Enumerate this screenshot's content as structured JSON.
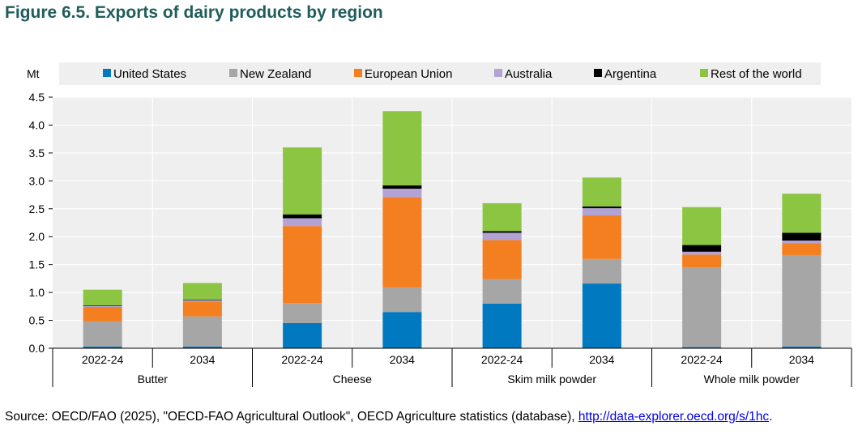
{
  "figure_title": "Figure 6.5. Exports of dairy products by region",
  "source": {
    "text": "Source: OECD/FAO (2025), \"OECD-FAO Agricultural Outlook\", OECD Agriculture statistics (database), ",
    "link_text": "http://data-explorer.oecd.org/s/1hc",
    "end": "."
  },
  "chart_data": {
    "type": "bar",
    "stacked": true,
    "title": "Figure 6.5. Exports of dairy products by region",
    "ylabel": "Mt",
    "xlabel": "",
    "ylim": [
      0,
      4.5
    ],
    "yticks": [
      "0.0",
      "0.5",
      "1.0",
      "1.5",
      "2.0",
      "2.5",
      "3.0",
      "3.5",
      "4.0",
      "4.5"
    ],
    "grid": true,
    "legend_position": "top",
    "groups": [
      "Butter",
      "Cheese",
      "Skim milk powder",
      "Whole milk powder"
    ],
    "categories": [
      "2022-24",
      "2034",
      "2022-24",
      "2034",
      "2022-24",
      "2034",
      "2022-24",
      "2034"
    ],
    "series": [
      {
        "name": "United States",
        "color": "#0079c1",
        "values": [
          0.03,
          0.03,
          0.45,
          0.65,
          0.8,
          1.16,
          0.02,
          0.03
        ]
      },
      {
        "name": "New Zealand",
        "color": "#a6a6a6",
        "values": [
          0.45,
          0.54,
          0.36,
          0.44,
          0.44,
          0.44,
          1.43,
          1.64
        ]
      },
      {
        "name": "European Union",
        "color": "#f47f20",
        "values": [
          0.26,
          0.27,
          1.38,
          1.62,
          0.7,
          0.78,
          0.23,
          0.21
        ]
      },
      {
        "name": "Australia",
        "color": "#b3a2d4",
        "values": [
          0.02,
          0.02,
          0.14,
          0.15,
          0.13,
          0.13,
          0.05,
          0.05
        ]
      },
      {
        "name": "Argentina",
        "color": "#000000",
        "values": [
          0.01,
          0.01,
          0.07,
          0.06,
          0.03,
          0.03,
          0.12,
          0.14
        ]
      },
      {
        "name": "Rest of the world",
        "color": "#8cc541",
        "values": [
          0.28,
          0.3,
          1.2,
          1.33,
          0.5,
          0.52,
          0.68,
          0.7
        ]
      }
    ]
  }
}
